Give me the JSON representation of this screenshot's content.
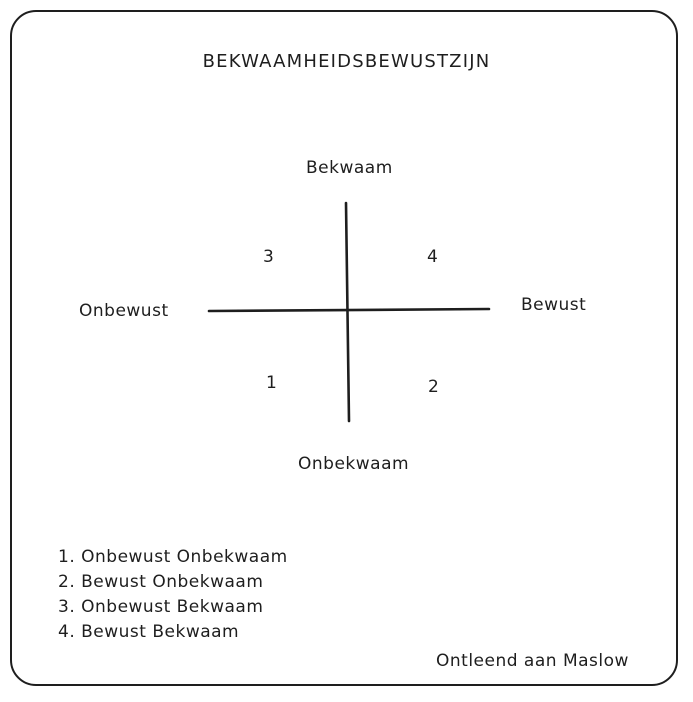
{
  "title": "BEKWAAMHEIDSBEWUSTZIJN",
  "axes": {
    "top": "Bekwaam",
    "bottom": "Onbekwaam",
    "left": "Onbewust",
    "right": "Bewust"
  },
  "quadrants": {
    "top_left": "3",
    "top_right": "4",
    "bottom_left": "1",
    "bottom_right": "2"
  },
  "legend": [
    "1. Onbewust Onbekwaam",
    "2. Bewust Onbekwaam",
    "3. Onbewust Bekwaam",
    "4. Bewust Bekwaam"
  ],
  "credit": "Ontleend aan Maslow",
  "colors": {
    "ink": "#1e1e1e",
    "background": "#ffffff"
  }
}
